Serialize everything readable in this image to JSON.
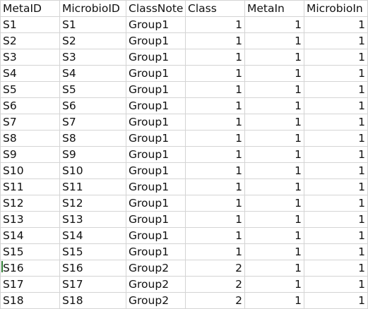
{
  "sheet": {
    "headers": [
      "MetaID",
      "MicrobioID",
      "ClassNote",
      "Class",
      "MetaIn",
      "MicrobioIn"
    ],
    "rows": [
      [
        "S1",
        "S1",
        "Group1",
        "1",
        "1",
        "1"
      ],
      [
        "S2",
        "S2",
        "Group1",
        "1",
        "1",
        "1"
      ],
      [
        "S3",
        "S3",
        "Group1",
        "1",
        "1",
        "1"
      ],
      [
        "S4",
        "S4",
        "Group1",
        "1",
        "1",
        "1"
      ],
      [
        "S5",
        "S5",
        "Group1",
        "1",
        "1",
        "1"
      ],
      [
        "S6",
        "S6",
        "Group1",
        "1",
        "1",
        "1"
      ],
      [
        "S7",
        "S7",
        "Group1",
        "1",
        "1",
        "1"
      ],
      [
        "S8",
        "S8",
        "Group1",
        "1",
        "1",
        "1"
      ],
      [
        "S9",
        "S9",
        "Group1",
        "1",
        "1",
        "1"
      ],
      [
        "S10",
        "S10",
        "Group1",
        "1",
        "1",
        "1"
      ],
      [
        "S11",
        "S11",
        "Group1",
        "1",
        "1",
        "1"
      ],
      [
        "S12",
        "S12",
        "Group1",
        "1",
        "1",
        "1"
      ],
      [
        "S13",
        "S13",
        "Group1",
        "1",
        "1",
        "1"
      ],
      [
        "S14",
        "S14",
        "Group1",
        "1",
        "1",
        "1"
      ],
      [
        "S15",
        "S15",
        "Group1",
        "1",
        "1",
        "1"
      ],
      [
        "S16",
        "S16",
        "Group2",
        "2",
        "1",
        "1"
      ],
      [
        "S17",
        "S17",
        "Group2",
        "2",
        "1",
        "1"
      ],
      [
        "S18",
        "S18",
        "Group2",
        "2",
        "1",
        "1"
      ]
    ]
  }
}
